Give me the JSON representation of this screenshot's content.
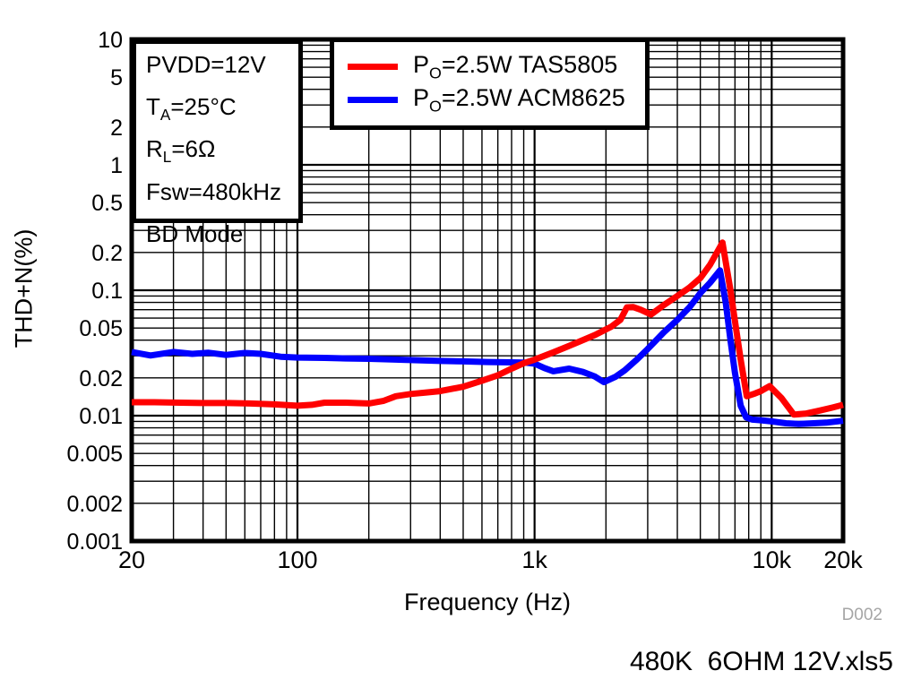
{
  "figure": {
    "y_axis_title": "THD+N(%)",
    "x_axis_title": "Frequency (Hz)",
    "watermark": "D002",
    "footer_filename": "480K  6OHM 12V.xls5"
  },
  "conditions": {
    "lines": [
      {
        "pre": "PVDD=12V",
        "sub": "",
        "post": ""
      },
      {
        "pre": "T",
        "sub": "A",
        "post": "=25°C"
      },
      {
        "pre": "R",
        "sub": "L",
        "post": "=6Ω"
      },
      {
        "pre": "Fsw=480kHz",
        "sub": "",
        "post": ""
      },
      {
        "pre": "BD Mode",
        "sub": "",
        "post": ""
      }
    ]
  },
  "legend": {
    "entries": [
      {
        "pre": "P",
        "sub": "O",
        "post": "=2.5W TAS5805"
      },
      {
        "pre": "P",
        "sub": "O",
        "post": "=2.5W ACM8625"
      }
    ]
  },
  "chart_data": {
    "type": "line",
    "title": "",
    "xlabel": "Frequency (Hz)",
    "ylabel": "THD+N(%)",
    "x_scale": "log",
    "y_scale": "log",
    "xlim": [
      20,
      20000
    ],
    "ylim": [
      0.001,
      10
    ],
    "grid": "log minor + major, both axes",
    "legend_position": "top center inside",
    "x_ticks": [
      {
        "v": 20,
        "label": "20"
      },
      {
        "v": 100,
        "label": "100"
      },
      {
        "v": 1000,
        "label": "1k"
      },
      {
        "v": 10000,
        "label": "10k"
      },
      {
        "v": 20000,
        "label": "20k"
      }
    ],
    "y_ticks": [
      {
        "v": 10,
        "label": "10"
      },
      {
        "v": 5,
        "label": "5"
      },
      {
        "v": 2,
        "label": "2"
      },
      {
        "v": 1,
        "label": "1"
      },
      {
        "v": 0.5,
        "label": "0.5"
      },
      {
        "v": 0.2,
        "label": "0.2"
      },
      {
        "v": 0.1,
        "label": "0.1"
      },
      {
        "v": 0.05,
        "label": "0.05"
      },
      {
        "v": 0.02,
        "label": "0.02"
      },
      {
        "v": 0.01,
        "label": "0.01"
      },
      {
        "v": 0.005,
        "label": "0.005"
      },
      {
        "v": 0.002,
        "label": "0.002"
      },
      {
        "v": 0.001,
        "label": "0.001"
      }
    ],
    "series": [
      {
        "name": "PO=2.5W TAS5805",
        "color": "#ff0000",
        "points": [
          [
            20,
            0.0128
          ],
          [
            25,
            0.0128
          ],
          [
            32,
            0.0127
          ],
          [
            40,
            0.0126
          ],
          [
            50,
            0.0126
          ],
          [
            63,
            0.0125
          ],
          [
            80,
            0.0123
          ],
          [
            100,
            0.012
          ],
          [
            115,
            0.0122
          ],
          [
            130,
            0.0127
          ],
          [
            160,
            0.0127
          ],
          [
            200,
            0.0125
          ],
          [
            230,
            0.0131
          ],
          [
            260,
            0.0143
          ],
          [
            300,
            0.0149
          ],
          [
            350,
            0.0153
          ],
          [
            400,
            0.0157
          ],
          [
            500,
            0.017
          ],
          [
            600,
            0.019
          ],
          [
            700,
            0.021
          ],
          [
            800,
            0.0237
          ],
          [
            900,
            0.0262
          ],
          [
            1000,
            0.028
          ],
          [
            1200,
            0.032
          ],
          [
            1500,
            0.038
          ],
          [
            1800,
            0.044
          ],
          [
            2100,
            0.051
          ],
          [
            2300,
            0.058
          ],
          [
            2450,
            0.073
          ],
          [
            2600,
            0.0735
          ],
          [
            2800,
            0.07
          ],
          [
            3100,
            0.064
          ],
          [
            3500,
            0.076
          ],
          [
            4000,
            0.09
          ],
          [
            4500,
            0.105
          ],
          [
            5000,
            0.125
          ],
          [
            5500,
            0.16
          ],
          [
            6200,
            0.24
          ],
          [
            6700,
            0.1
          ],
          [
            7000,
            0.057
          ],
          [
            7400,
            0.028
          ],
          [
            7850,
            0.0143
          ],
          [
            8500,
            0.015
          ],
          [
            9000,
            0.0157
          ],
          [
            9800,
            0.0172
          ],
          [
            11000,
            0.0138
          ],
          [
            12400,
            0.0102
          ],
          [
            14000,
            0.0104
          ],
          [
            16000,
            0.011
          ],
          [
            18000,
            0.0116
          ],
          [
            20000,
            0.0122
          ]
        ]
      },
      {
        "name": "PO=2.5W ACM8625",
        "color": "#0000ff",
        "points": [
          [
            20,
            0.0322
          ],
          [
            24,
            0.0302
          ],
          [
            30,
            0.0322
          ],
          [
            36,
            0.0311
          ],
          [
            42,
            0.0318
          ],
          [
            50,
            0.0305
          ],
          [
            60,
            0.0316
          ],
          [
            70,
            0.0311
          ],
          [
            85,
            0.0295
          ],
          [
            100,
            0.0291
          ],
          [
            130,
            0.0289
          ],
          [
            160,
            0.0286
          ],
          [
            200,
            0.0284
          ],
          [
            250,
            0.0281
          ],
          [
            320,
            0.0277
          ],
          [
            400,
            0.0273
          ],
          [
            500,
            0.0271
          ],
          [
            630,
            0.0268
          ],
          [
            800,
            0.0266
          ],
          [
            900,
            0.0265
          ],
          [
            1000,
            0.026
          ],
          [
            1100,
            0.024
          ],
          [
            1200,
            0.0226
          ],
          [
            1400,
            0.0237
          ],
          [
            1600,
            0.0223
          ],
          [
            1800,
            0.0205
          ],
          [
            1960,
            0.0185
          ],
          [
            2200,
            0.0205
          ],
          [
            2400,
            0.023
          ],
          [
            2700,
            0.028
          ],
          [
            3000,
            0.034
          ],
          [
            3500,
            0.046
          ],
          [
            4000,
            0.058
          ],
          [
            4500,
            0.073
          ],
          [
            5000,
            0.095
          ],
          [
            5500,
            0.115
          ],
          [
            6050,
            0.144
          ],
          [
            6400,
            0.08
          ],
          [
            6700,
            0.04
          ],
          [
            7000,
            0.022
          ],
          [
            7400,
            0.012
          ],
          [
            7800,
            0.0097
          ],
          [
            8300,
            0.0093
          ],
          [
            9000,
            0.0092
          ],
          [
            10000,
            0.009
          ],
          [
            11500,
            0.0087
          ],
          [
            13000,
            0.0086
          ],
          [
            15000,
            0.0087
          ],
          [
            17000,
            0.0088
          ],
          [
            20000,
            0.0091
          ]
        ]
      }
    ]
  }
}
